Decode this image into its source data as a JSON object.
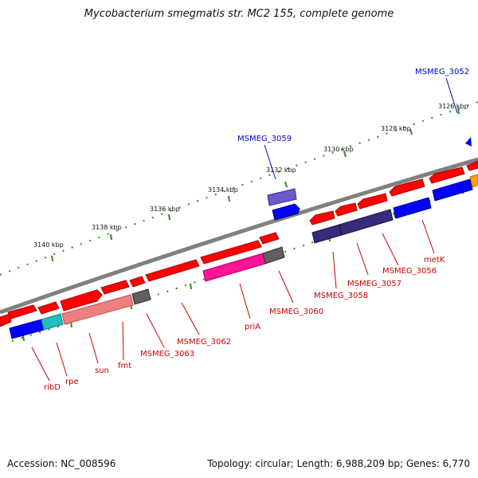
{
  "title": "Mycobacterium smegmatis str. MC2 155, complete genome",
  "footer": {
    "accession": "Accession: NC_008596",
    "stats": "Topology: circular; Length: 6,988,209 bp; Genes: 6,770"
  },
  "colors": {
    "backbone": "#808080",
    "scale_tick": "#2e8b20",
    "label_red": "#cc0000",
    "label_blue": "#0000cc",
    "gene_red": "#ff0000",
    "gene_blue": "#0000ff",
    "gene_purple": "#3a2a7a",
    "gene_lavender": "#6a5acd",
    "gene_magenta": "#ff1493",
    "gene_pink": "#f08080",
    "gene_cyan": "#20c0c0",
    "gene_gray": "#606060",
    "gene_orange": "#ffa500"
  },
  "scale_labels": [
    "3126 kbp",
    "3128 kbp",
    "3130 kbp",
    "3132 kbp",
    "3134 kbp",
    "3136 kbp",
    "3138 kbp",
    "3140 kbp"
  ],
  "gene_labels": {
    "top": [
      "MSMEG_3052",
      "MSMEG_3059"
    ],
    "bottom": [
      "metK",
      "MSMEG_3056",
      "MSMEG_3057",
      "MSMEG_3058",
      "MSMEG_3060",
      "priA",
      "MSMEG_3062",
      "MSMEG_3063",
      "fmt",
      "sun",
      "rpe",
      "ribD"
    ]
  }
}
